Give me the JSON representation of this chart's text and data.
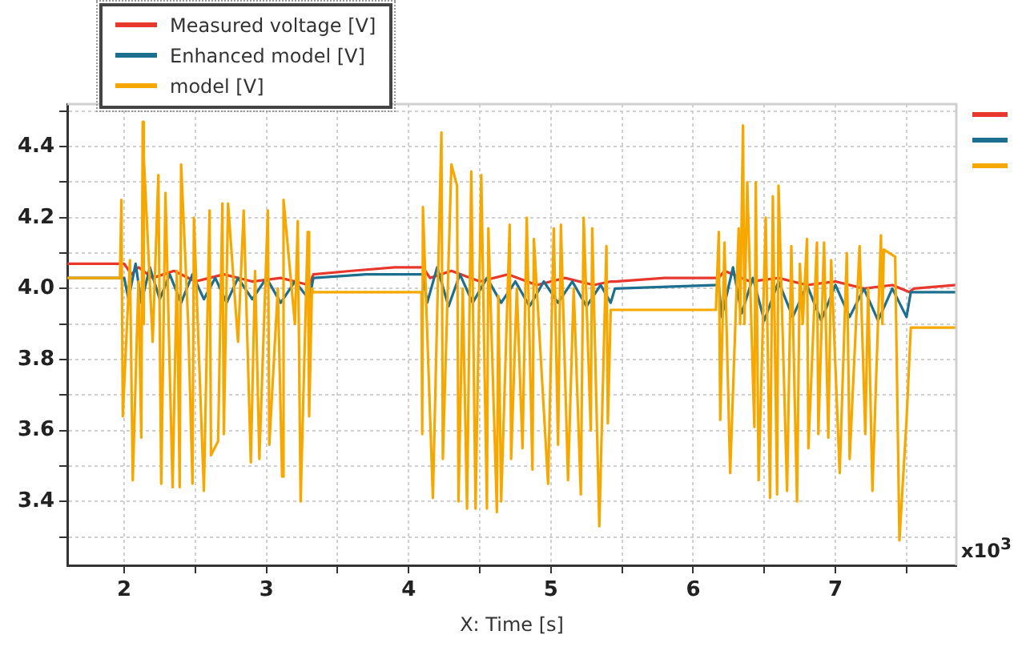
{
  "chart_data": {
    "type": "line",
    "xlabel": "X: Time [s]",
    "legend": "top left",
    "grid": true,
    "annotations": [
      "x10$^{3}$"
    ],
    "xlim": [
      1.6,
      7.85
    ],
    "ylim": [
      3.22,
      4.52
    ],
    "xticks": [
      2,
      {
        "value": 2.5,
        "label": null
      },
      3,
      {
        "value": 3.5,
        "label": null
      },
      4,
      {
        "value": 4.5,
        "label": null
      },
      5,
      {
        "value": 5.5,
        "label": null
      },
      6,
      {
        "value": 6.5,
        "label": null
      },
      7,
      {
        "value": 7.5,
        "label": null
      }
    ],
    "yticks": [
      {
        "value": 3.3,
        "label": null
      },
      3.4,
      {
        "value": 3.5,
        "label": null
      },
      3.6,
      {
        "value": 3.7,
        "label": null
      },
      3.8,
      {
        "value": 3.9,
        "label": null
      },
      {
        "value": 4.0,
        "label": "4.0"
      },
      {
        "value": 4.1,
        "label": null
      },
      4.2,
      {
        "value": 4.3,
        "label": null
      },
      4.4,
      {
        "value": 4.5,
        "label": null
      }
    ],
    "series": [
      {
        "name": "Measured voltage [V]",
        "color": "#e8372c",
        "x": [
          1.6,
          2.0,
          2.05,
          2.1,
          2.2,
          2.35,
          2.5,
          2.7,
          2.9,
          3.1,
          3.3,
          3.33,
          3.6,
          3.9,
          4.1,
          4.15,
          4.3,
          4.5,
          4.7,
          4.9,
          5.1,
          5.3,
          5.42,
          5.45,
          5.8,
          6.18,
          6.22,
          6.4,
          6.6,
          6.8,
          7.0,
          7.2,
          7.4,
          7.52,
          7.55,
          7.85
        ],
        "values": [
          4.07,
          4.07,
          4.04,
          4.06,
          4.03,
          4.05,
          4.02,
          4.04,
          4.02,
          4.03,
          4.01,
          4.04,
          4.05,
          4.06,
          4.06,
          4.03,
          4.05,
          4.02,
          4.04,
          4.01,
          4.03,
          4.01,
          4.02,
          4.02,
          4.03,
          4.03,
          4.05,
          4.02,
          4.03,
          4.01,
          4.02,
          4.0,
          4.01,
          3.99,
          4.0,
          4.01
        ]
      },
      {
        "name": "Enhanced model [V]",
        "color": "#1d6f8f",
        "x": [
          1.6,
          2.0,
          2.03,
          2.08,
          2.12,
          2.18,
          2.25,
          2.32,
          2.4,
          2.48,
          2.56,
          2.64,
          2.72,
          2.8,
          2.9,
          3.0,
          3.1,
          3.2,
          3.3,
          3.33,
          3.7,
          4.1,
          4.13,
          4.2,
          4.28,
          4.36,
          4.45,
          4.55,
          4.65,
          4.75,
          4.85,
          4.95,
          5.05,
          5.15,
          5.25,
          5.35,
          5.42,
          5.45,
          6.18,
          6.2,
          6.28,
          6.34,
          6.42,
          6.5,
          6.6,
          6.7,
          6.8,
          6.9,
          7.0,
          7.1,
          7.2,
          7.3,
          7.4,
          7.5,
          7.53,
          7.85
        ],
        "values": [
          4.03,
          4.03,
          3.97,
          4.07,
          3.96,
          4.06,
          3.97,
          4.04,
          3.96,
          4.04,
          3.97,
          4.03,
          3.96,
          4.03,
          3.97,
          4.03,
          3.96,
          4.02,
          3.97,
          4.03,
          4.04,
          4.04,
          3.96,
          4.06,
          3.95,
          4.04,
          3.96,
          4.03,
          3.96,
          4.02,
          3.95,
          4.02,
          3.96,
          4.02,
          3.95,
          4.01,
          3.96,
          4.0,
          4.01,
          3.92,
          4.06,
          3.93,
          4.03,
          3.91,
          4.02,
          3.92,
          4.01,
          3.91,
          4.01,
          3.92,
          4.0,
          3.91,
          4.0,
          3.92,
          3.99,
          3.99
        ]
      },
      {
        "name": "model [V]",
        "color": "#f7a800",
        "x": [
          1.6,
          1.97,
          1.98,
          1.99,
          2.04,
          2.06,
          2.1,
          2.12,
          2.13,
          2.135,
          2.14,
          2.2,
          2.24,
          2.26,
          2.29,
          2.34,
          2.37,
          2.39,
          2.4,
          2.45,
          2.48,
          2.49,
          2.56,
          2.6,
          2.61,
          2.66,
          2.69,
          2.7,
          2.73,
          2.8,
          2.84,
          2.89,
          2.92,
          2.95,
          3.01,
          3.02,
          3.08,
          3.11,
          3.12,
          3.2,
          3.22,
          3.24,
          3.29,
          3.3,
          3.32,
          3.33,
          4.09,
          4.095,
          4.1,
          4.17,
          4.23,
          4.24,
          4.3,
          4.34,
          4.35,
          4.38,
          4.41,
          4.44,
          4.47,
          4.51,
          4.55,
          4.56,
          4.62,
          4.63,
          4.65,
          4.71,
          4.72,
          4.76,
          4.8,
          4.83,
          4.87,
          4.88,
          4.98,
          5.02,
          5.05,
          5.07,
          5.12,
          5.16,
          5.21,
          5.23,
          5.28,
          5.29,
          5.34,
          5.39,
          5.4,
          5.42,
          6.16,
          6.18,
          6.19,
          6.22,
          6.26,
          6.32,
          6.33,
          6.35,
          6.36,
          6.38,
          6.43,
          6.44,
          6.46,
          6.51,
          6.54,
          6.56,
          6.59,
          6.6,
          6.66,
          6.69,
          6.73,
          6.75,
          6.77,
          6.8,
          6.81,
          6.87,
          6.88,
          6.92,
          6.95,
          6.97,
          7.03,
          7.08,
          7.1,
          7.17,
          7.21,
          7.23,
          7.26,
          7.32,
          7.33,
          7.34,
          7.42,
          7.45,
          7.5,
          7.53,
          7.85
        ],
        "values": [
          4.03,
          4.03,
          4.25,
          3.64,
          4.08,
          3.46,
          4.02,
          3.58,
          4.47,
          3.9,
          4.37,
          3.85,
          4.32,
          3.45,
          4.27,
          3.44,
          4.05,
          3.44,
          4.35,
          3.9,
          3.45,
          4.2,
          3.43,
          4.22,
          3.53,
          3.57,
          4.24,
          3.59,
          4.24,
          3.85,
          4.22,
          3.51,
          4.05,
          3.52,
          4.22,
          3.56,
          4.0,
          3.47,
          4.25,
          3.9,
          4.19,
          3.4,
          4.16,
          3.64,
          4.0,
          3.99,
          3.99,
          3.59,
          4.23,
          3.41,
          4.44,
          3.52,
          4.35,
          4.29,
          3.4,
          4.0,
          3.38,
          4.33,
          3.38,
          4.32,
          3.38,
          4.17,
          3.37,
          3.98,
          3.4,
          4.18,
          3.52,
          4.0,
          3.55,
          4.2,
          3.49,
          4.14,
          3.45,
          4.17,
          3.56,
          4.18,
          3.46,
          4.0,
          3.42,
          4.2,
          3.6,
          4.17,
          3.33,
          4.12,
          3.62,
          3.94,
          3.94,
          4.16,
          3.63,
          4.13,
          3.48,
          4.17,
          3.9,
          4.46,
          3.9,
          4.3,
          3.61,
          4.3,
          3.46,
          4.2,
          3.41,
          4.26,
          3.42,
          4.29,
          3.43,
          4.12,
          3.4,
          4.07,
          3.9,
          4.14,
          3.55,
          4.13,
          3.59,
          4.13,
          3.58,
          4.08,
          3.48,
          4.1,
          3.52,
          4.12,
          3.59,
          4.0,
          3.43,
          4.15,
          3.9,
          4.11,
          4.09,
          3.29,
          3.63,
          3.89,
          3.89
        ]
      }
    ]
  }
}
